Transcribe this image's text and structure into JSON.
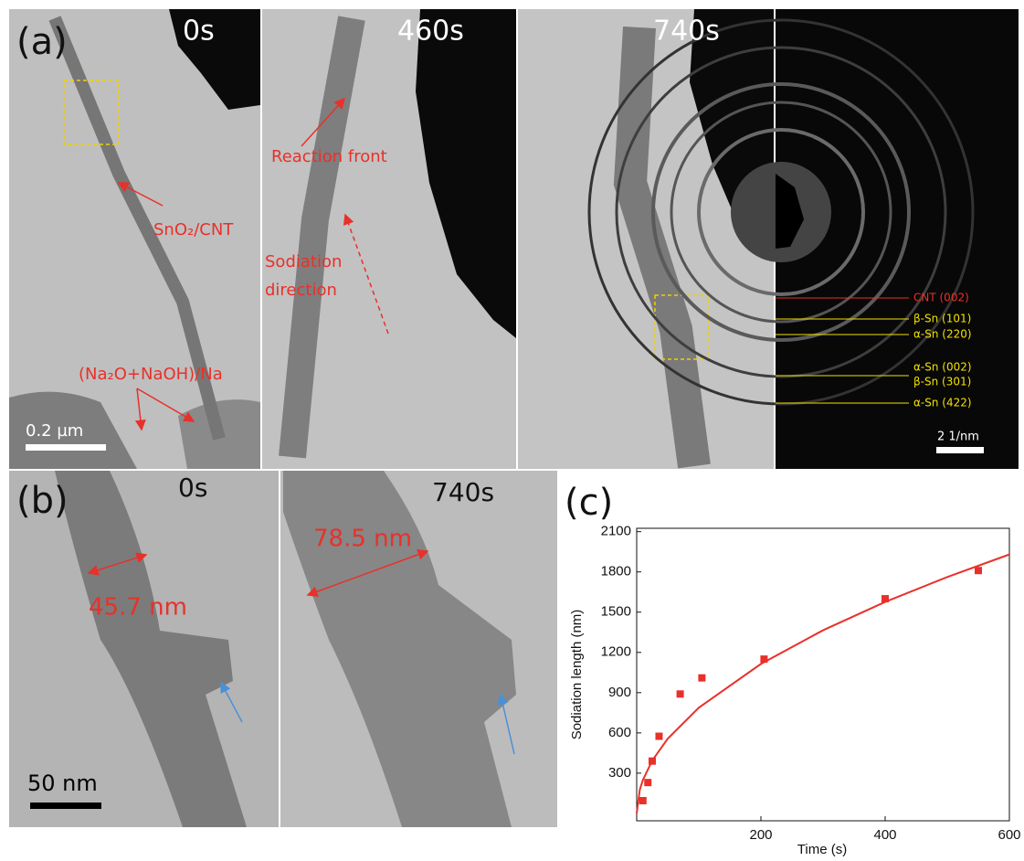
{
  "panel_a": {
    "label": "(a)",
    "times": [
      "0s",
      "460s",
      "740s"
    ],
    "annotations": {
      "material": "SnO₂/CNT",
      "electrolyte": "(Na₂O+NaOH)/Na",
      "front": "Reaction front",
      "direction": [
        "Sodiation",
        "direction"
      ]
    },
    "scale_bar": "0.2 µm",
    "diffraction": {
      "rings": [
        "CNT (002)",
        "β-Sn (101)",
        "α-Sn (220)",
        "α-Sn (002)",
        "β-Sn (301)",
        "α-Sn (422)"
      ],
      "scale_bar": "2 1/nm"
    }
  },
  "panel_b": {
    "label": "(b)",
    "times": [
      "0s",
      "740s"
    ],
    "widths": [
      "45.7 nm",
      "78.5 nm"
    ],
    "scale_bar": "50 nm"
  },
  "chart_data": {
    "type": "scatter",
    "label": "(c)",
    "x_label": "Time (s)",
    "y_label": "Sodiation length (nm)",
    "xlim": [
      0,
      600
    ],
    "ylim": [
      -55,
      2125
    ],
    "xticks": [
      200,
      400,
      600
    ],
    "yticks": [
      300,
      600,
      900,
      1200,
      1500,
      1800,
      2100
    ],
    "series": [
      {
        "type": "scatter",
        "color": "#e8312a",
        "x": [
          10,
          18,
          25,
          36,
          70,
          105,
          205,
          400,
          550
        ],
        "values": [
          95,
          230,
          390,
          575,
          890,
          1010,
          1150,
          1600,
          1810
        ]
      },
      {
        "type": "line",
        "color": "#e8312a",
        "x": [
          0,
          5,
          10,
          25,
          50,
          100,
          200,
          300,
          400,
          500,
          600
        ],
        "values": [
          0,
          176,
          249,
          394,
          557,
          788,
          1114,
          1365,
          1576,
          1762,
          1930
        ]
      }
    ]
  }
}
